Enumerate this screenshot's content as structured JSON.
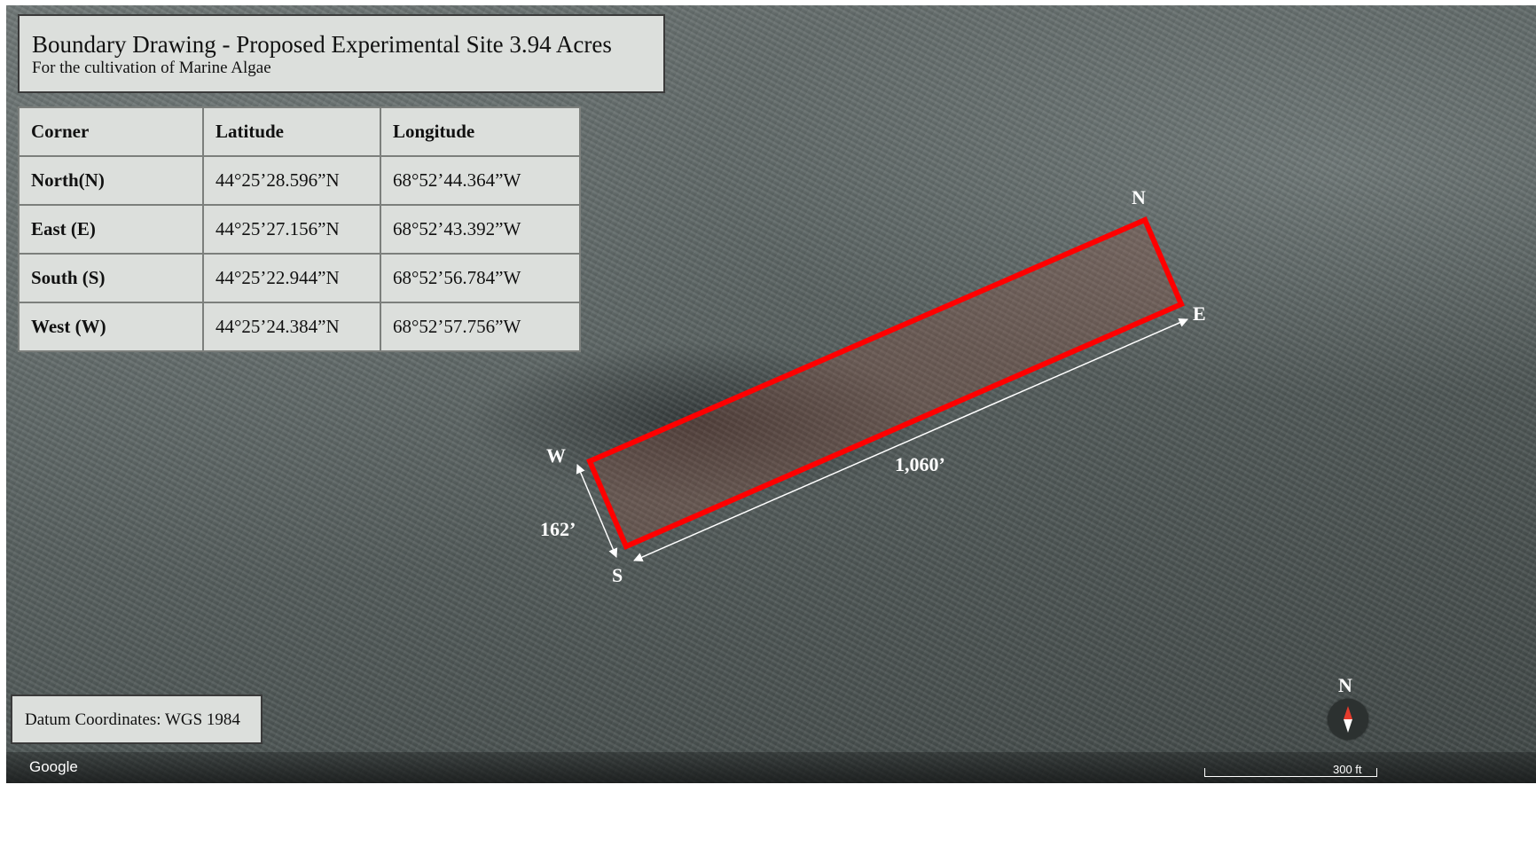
{
  "title": "Boundary Drawing - Proposed Experimental Site 3.94 Acres",
  "subtitle": "For the cultivation of Marine Algae",
  "table": {
    "headers": [
      "Corner",
      "Latitude",
      "Longitude"
    ],
    "rows": [
      {
        "corner": "North(N)",
        "lat": "44°25’28.596”N",
        "lon": "68°52’44.364”W"
      },
      {
        "corner": "East (E)",
        "lat": "44°25’27.156”N",
        "lon": "68°52’43.392”W"
      },
      {
        "corner": "South (S)",
        "lat": "44°25’22.944”N",
        "lon": "68°52’56.784”W"
      },
      {
        "corner": "West (W)",
        "lat": "44°25’24.384”N",
        "lon": "68°52’57.756”W"
      }
    ]
  },
  "corner_labels": {
    "north": "N",
    "east": "E",
    "south": "S",
    "west": "W"
  },
  "dimensions": {
    "length": "1,060’",
    "width": "162’"
  },
  "datum": "Datum Coordinates: WGS 1984",
  "compass_label": "N",
  "google_logo": "Google",
  "scale_label": "300 ft",
  "colors": {
    "boundary": "#ff0000",
    "panel_bg": "#dcdfdc",
    "label_text": "#ffffff"
  }
}
